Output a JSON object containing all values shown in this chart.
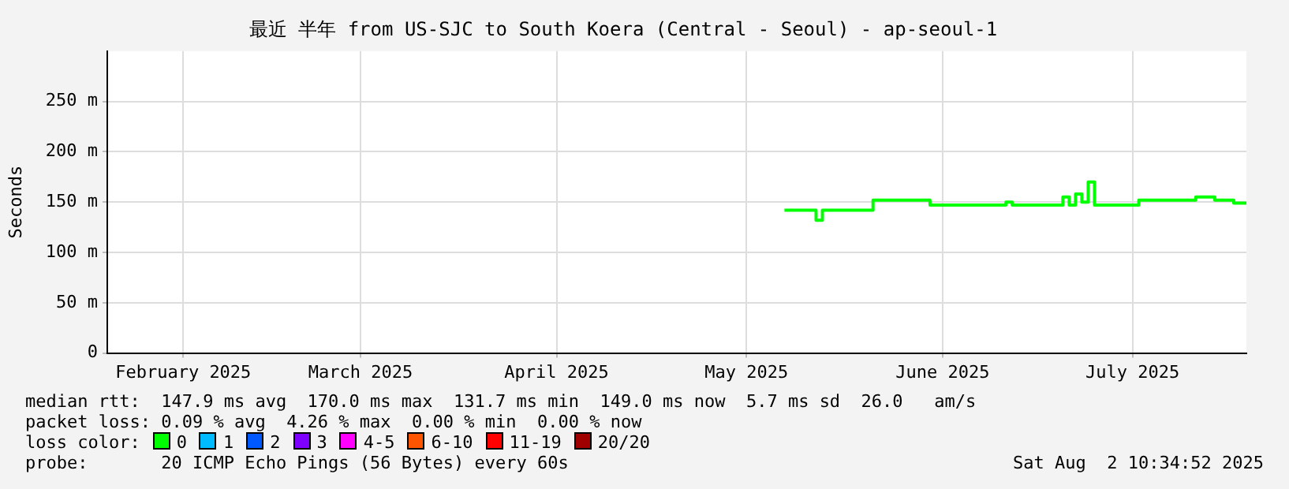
{
  "chart_data": {
    "type": "step",
    "title": "最近 半年 from US-SJC to South Koera (Central - Seoul) - ap-seoul-1",
    "ylabel": "Seconds",
    "xlim": [
      "2025-02-03",
      "2025-08-02"
    ],
    "xticks": [
      {
        "value": "2025-02-15",
        "label": "February 2025"
      },
      {
        "value": "2025-03-15",
        "label": "March 2025"
      },
      {
        "value": "2025-04-15",
        "label": "April 2025"
      },
      {
        "value": "2025-05-15",
        "label": "May 2025"
      },
      {
        "value": "2025-06-15",
        "label": "June 2025"
      },
      {
        "value": "2025-07-15",
        "label": "July 2025"
      }
    ],
    "ylim": [
      0,
      300
    ],
    "yticks": [
      0,
      {
        "value": 50,
        "label": "50 m"
      },
      {
        "value": 100,
        "label": "100 m"
      },
      {
        "value": 150,
        "label": "150 m"
      },
      {
        "value": 200,
        "label": "200 m"
      },
      {
        "value": 250,
        "label": "250 m"
      }
    ],
    "grid": true,
    "legend": "bottom",
    "legend_title": "loss color:",
    "x": [
      "2025-05-21",
      "2025-05-26",
      "2025-05-27",
      "2025-06-04",
      "2025-06-13",
      "2025-06-25",
      "2025-06-26",
      "2025-07-04",
      "2025-07-05",
      "2025-07-06",
      "2025-07-07",
      "2025-07-08",
      "2025-07-09",
      "2025-07-16",
      "2025-07-25",
      "2025-07-28",
      "2025-07-31",
      "2025-08-02"
    ],
    "series": [
      {
        "name": "0",
        "color": "#00ff00",
        "values": [
          142,
          132,
          142,
          152,
          147,
          150,
          147,
          155,
          147,
          158,
          150,
          170,
          147,
          152,
          155,
          152,
          149,
          149
        ]
      },
      {
        "name": "1",
        "color": "#00bbff",
        "values": [
          null,
          null,
          null,
          null,
          null,
          null,
          null,
          null,
          null,
          null,
          null,
          null,
          null,
          null,
          null,
          null,
          null,
          null
        ]
      },
      {
        "name": "2",
        "color": "#0059ff",
        "values": [
          null,
          null,
          null,
          null,
          null,
          null,
          null,
          null,
          null,
          null,
          null,
          null,
          null,
          null,
          null,
          null,
          null,
          null
        ]
      },
      {
        "name": "3",
        "color": "#7e00ff",
        "values": [
          null,
          null,
          null,
          null,
          null,
          null,
          null,
          null,
          null,
          null,
          null,
          null,
          null,
          null,
          null,
          null,
          null,
          null
        ]
      },
      {
        "name": "4-5",
        "color": "#ff00fe",
        "values": [
          null,
          null,
          null,
          null,
          null,
          null,
          null,
          null,
          null,
          null,
          null,
          null,
          null,
          null,
          null,
          null,
          null,
          null
        ]
      },
      {
        "name": "6-10",
        "color": "#ff5500",
        "values": [
          null,
          null,
          null,
          null,
          null,
          null,
          null,
          null,
          null,
          null,
          null,
          null,
          null,
          null,
          null,
          null,
          null,
          null
        ]
      },
      {
        "name": "11-19",
        "color": "#ff0000",
        "values": [
          null,
          null,
          null,
          null,
          null,
          null,
          null,
          null,
          null,
          null,
          null,
          null,
          null,
          null,
          null,
          null,
          null,
          null
        ]
      },
      {
        "name": "20/20",
        "color": "#a10000",
        "values": [
          null,
          null,
          null,
          null,
          null,
          null,
          null,
          null,
          null,
          null,
          null,
          null,
          null,
          null,
          null,
          null,
          null,
          null
        ]
      }
    ],
    "annotations": [
      "median rtt:  147.9 ms avg  170.0 ms max  131.7 ms min  149.0 ms now  5.7 ms sd  26.0   am/s",
      "packet loss: 0.09 % avg  4.26 % max  0.00 % min  0.00 % now",
      "probe:       20 ICMP Echo Pings (56 Bytes) every 60s",
      "Sat Aug  2 10:34:52 2025"
    ]
  }
}
